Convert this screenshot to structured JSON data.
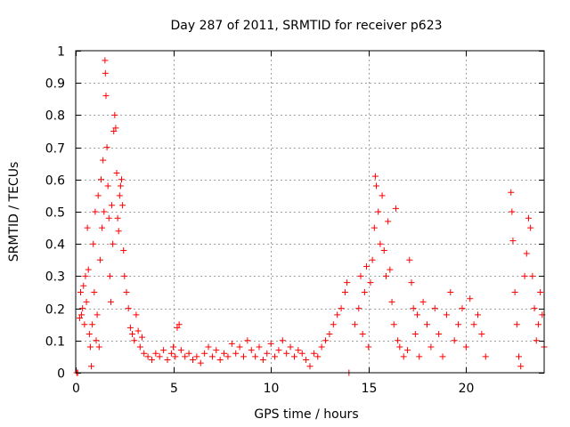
{
  "chart_data": {
    "type": "scatter",
    "title": "Day 287 of 2011, SRMTID for receiver p623",
    "xlabel": "GPS time / hours",
    "ylabel": "SRMTID / TECUs",
    "xlim": [
      0,
      24
    ],
    "ylim": [
      0,
      1
    ],
    "x_ticks": [
      0,
      5,
      10,
      15,
      20
    ],
    "x_tick_labels": [
      "0",
      "5",
      "10",
      "15",
      "20"
    ],
    "y_ticks": [
      0,
      0.1,
      0.2,
      0.3,
      0.4,
      0.5,
      0.6,
      0.7,
      0.8,
      0.9,
      1
    ],
    "y_tick_labels": [
      "0",
      "0.1",
      "0.2",
      "0.3",
      "0.4",
      "0.5",
      "0.6",
      "0.7",
      "0.8",
      "0.9",
      "1"
    ],
    "grid": true,
    "marker": "plus",
    "marker_color": "#ff0000",
    "series": [
      {
        "name": "SRMTID p623",
        "points": [
          [
            0.05,
            0.0
          ],
          [
            0.1,
            0.0
          ],
          [
            0.2,
            0.17
          ],
          [
            0.25,
            0.25
          ],
          [
            0.3,
            0.18
          ],
          [
            0.35,
            0.2
          ],
          [
            0.4,
            0.27
          ],
          [
            0.45,
            0.15
          ],
          [
            0.5,
            0.3
          ],
          [
            0.55,
            0.22
          ],
          [
            0.6,
            0.45
          ],
          [
            0.65,
            0.32
          ],
          [
            0.7,
            0.12
          ],
          [
            0.75,
            0.08
          ],
          [
            0.8,
            0.02
          ],
          [
            0.85,
            0.15
          ],
          [
            0.9,
            0.4
          ],
          [
            0.95,
            0.25
          ],
          [
            1.0,
            0.5
          ],
          [
            1.05,
            0.1
          ],
          [
            1.1,
            0.18
          ],
          [
            1.15,
            0.55
          ],
          [
            1.2,
            0.08
          ],
          [
            1.25,
            0.35
          ],
          [
            1.3,
            0.6
          ],
          [
            1.35,
            0.45
          ],
          [
            1.4,
            0.66
          ],
          [
            1.45,
            0.5
          ],
          [
            1.5,
            0.97
          ],
          [
            1.52,
            0.93
          ],
          [
            1.55,
            0.86
          ],
          [
            1.6,
            0.7
          ],
          [
            1.65,
            0.58
          ],
          [
            1.7,
            0.48
          ],
          [
            1.75,
            0.3
          ],
          [
            1.8,
            0.22
          ],
          [
            1.85,
            0.52
          ],
          [
            1.9,
            0.4
          ],
          [
            1.95,
            0.75
          ],
          [
            2.0,
            0.8
          ],
          [
            2.05,
            0.76
          ],
          [
            2.1,
            0.62
          ],
          [
            2.15,
            0.48
          ],
          [
            2.2,
            0.44
          ],
          [
            2.25,
            0.55
          ],
          [
            2.3,
            0.58
          ],
          [
            2.35,
            0.6
          ],
          [
            2.4,
            0.52
          ],
          [
            2.45,
            0.38
          ],
          [
            2.5,
            0.3
          ],
          [
            2.6,
            0.25
          ],
          [
            2.7,
            0.2
          ],
          [
            2.8,
            0.14
          ],
          [
            2.9,
            0.12
          ],
          [
            3.0,
            0.1
          ],
          [
            3.1,
            0.18
          ],
          [
            3.2,
            0.13
          ],
          [
            3.3,
            0.08
          ],
          [
            3.4,
            0.11
          ],
          [
            3.5,
            0.06
          ],
          [
            3.7,
            0.05
          ],
          [
            3.9,
            0.04
          ],
          [
            4.1,
            0.06
          ],
          [
            4.3,
            0.05
          ],
          [
            4.5,
            0.07
          ],
          [
            4.7,
            0.04
          ],
          [
            4.9,
            0.06
          ],
          [
            5.0,
            0.08
          ],
          [
            5.1,
            0.05
          ],
          [
            5.2,
            0.14
          ],
          [
            5.3,
            0.15
          ],
          [
            5.4,
            0.07
          ],
          [
            5.6,
            0.05
          ],
          [
            5.8,
            0.06
          ],
          [
            6.0,
            0.04
          ],
          [
            6.2,
            0.05
          ],
          [
            6.4,
            0.03
          ],
          [
            6.6,
            0.06
          ],
          [
            6.8,
            0.08
          ],
          [
            7.0,
            0.05
          ],
          [
            7.2,
            0.07
          ],
          [
            7.4,
            0.04
          ],
          [
            7.6,
            0.06
          ],
          [
            7.8,
            0.05
          ],
          [
            8.0,
            0.09
          ],
          [
            8.2,
            0.06
          ],
          [
            8.4,
            0.08
          ],
          [
            8.6,
            0.05
          ],
          [
            8.8,
            0.1
          ],
          [
            9.0,
            0.07
          ],
          [
            9.2,
            0.05
          ],
          [
            9.4,
            0.08
          ],
          [
            9.6,
            0.04
          ],
          [
            9.8,
            0.06
          ],
          [
            10.0,
            0.09
          ],
          [
            10.2,
            0.05
          ],
          [
            10.4,
            0.07
          ],
          [
            10.6,
            0.1
          ],
          [
            10.8,
            0.06
          ],
          [
            11.0,
            0.08
          ],
          [
            11.2,
            0.05
          ],
          [
            11.4,
            0.07
          ],
          [
            11.6,
            0.06
          ],
          [
            11.8,
            0.04
          ],
          [
            12.0,
            0.02
          ],
          [
            12.2,
            0.06
          ],
          [
            12.4,
            0.05
          ],
          [
            12.6,
            0.08
          ],
          [
            12.8,
            0.1
          ],
          [
            13.0,
            0.12
          ],
          [
            13.2,
            0.15
          ],
          [
            13.4,
            0.18
          ],
          [
            13.6,
            0.2
          ],
          [
            13.8,
            0.25
          ],
          [
            13.9,
            0.28
          ],
          [
            14.0,
            0.0
          ],
          [
            14.3,
            0.15
          ],
          [
            14.5,
            0.2
          ],
          [
            14.6,
            0.3
          ],
          [
            14.7,
            0.12
          ],
          [
            14.8,
            0.25
          ],
          [
            14.9,
            0.33
          ],
          [
            15.0,
            0.08
          ],
          [
            15.1,
            0.28
          ],
          [
            15.2,
            0.35
          ],
          [
            15.3,
            0.45
          ],
          [
            15.35,
            0.61
          ],
          [
            15.4,
            0.58
          ],
          [
            15.5,
            0.5
          ],
          [
            15.6,
            0.4
          ],
          [
            15.7,
            0.55
          ],
          [
            15.8,
            0.38
          ],
          [
            15.9,
            0.3
          ],
          [
            16.0,
            0.47
          ],
          [
            16.1,
            0.32
          ],
          [
            16.2,
            0.22
          ],
          [
            16.3,
            0.15
          ],
          [
            16.4,
            0.51
          ],
          [
            16.5,
            0.1
          ],
          [
            16.6,
            0.08
          ],
          [
            16.8,
            0.05
          ],
          [
            17.0,
            0.07
          ],
          [
            17.1,
            0.35
          ],
          [
            17.2,
            0.28
          ],
          [
            17.3,
            0.2
          ],
          [
            17.4,
            0.12
          ],
          [
            17.5,
            0.18
          ],
          [
            17.6,
            0.05
          ],
          [
            17.8,
            0.22
          ],
          [
            18.0,
            0.15
          ],
          [
            18.2,
            0.08
          ],
          [
            18.4,
            0.2
          ],
          [
            18.6,
            0.12
          ],
          [
            18.8,
            0.05
          ],
          [
            19.0,
            0.18
          ],
          [
            19.2,
            0.25
          ],
          [
            19.4,
            0.1
          ],
          [
            19.6,
            0.15
          ],
          [
            19.8,
            0.2
          ],
          [
            20.0,
            0.08
          ],
          [
            20.2,
            0.23
          ],
          [
            20.4,
            0.15
          ],
          [
            20.6,
            0.18
          ],
          [
            20.8,
            0.12
          ],
          [
            21.0,
            0.05
          ],
          [
            22.3,
            0.56
          ],
          [
            22.35,
            0.5
          ],
          [
            22.4,
            0.41
          ],
          [
            22.5,
            0.25
          ],
          [
            22.6,
            0.15
          ],
          [
            22.7,
            0.05
          ],
          [
            22.8,
            0.02
          ],
          [
            23.0,
            0.3
          ],
          [
            23.1,
            0.37
          ],
          [
            23.2,
            0.48
          ],
          [
            23.3,
            0.45
          ],
          [
            23.4,
            0.3
          ],
          [
            23.5,
            0.2
          ],
          [
            23.6,
            0.1
          ],
          [
            23.7,
            0.15
          ],
          [
            23.8,
            0.25
          ],
          [
            23.9,
            0.18
          ],
          [
            24.0,
            0.08
          ]
        ]
      }
    ]
  }
}
